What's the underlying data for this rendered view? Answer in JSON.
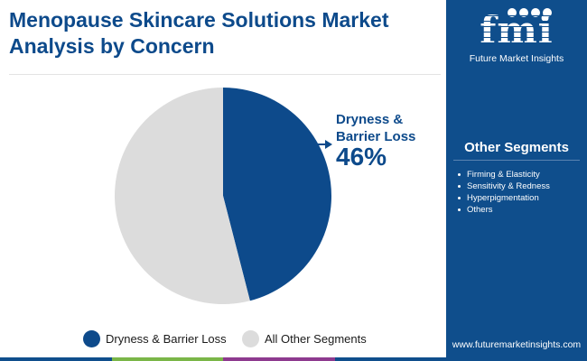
{
  "title": "Menopause Skincare Solutions Market Analysis by Concern",
  "logo": {
    "mark": "fmi",
    "subtitle": "Future Market Insights"
  },
  "sidebar": {
    "heading": "Other Segments",
    "items": [
      "Firming & Elasticity",
      "Sensitivity & Redness",
      "Hyperpigmentation",
      "Others"
    ],
    "url": "www.futuremarketinsights.com"
  },
  "callout": {
    "label": "Dryness & Barrier Loss",
    "value": "46%"
  },
  "legend": [
    {
      "label": "Dryness & Barrier Loss",
      "color": "#0d4a8b"
    },
    {
      "label": "All Other Segments",
      "color": "#dcdcdc"
    }
  ],
  "colors": {
    "brand": "#0d4a8b",
    "sidebar": "#0f4e8c",
    "other": "#dcdcdc",
    "bottom_bar": [
      "#0f4e8c",
      "#7ab648",
      "#8e3a8f",
      "#0f4e8c"
    ]
  },
  "chart_data": {
    "type": "pie",
    "categories": [
      "Dryness & Barrier Loss",
      "All Other Segments"
    ],
    "values": [
      46,
      54
    ],
    "colors": [
      "#0d4a8b",
      "#dcdcdc"
    ],
    "start": "12 o'clock",
    "direction": "clockwise",
    "legend_position": "bottom"
  }
}
